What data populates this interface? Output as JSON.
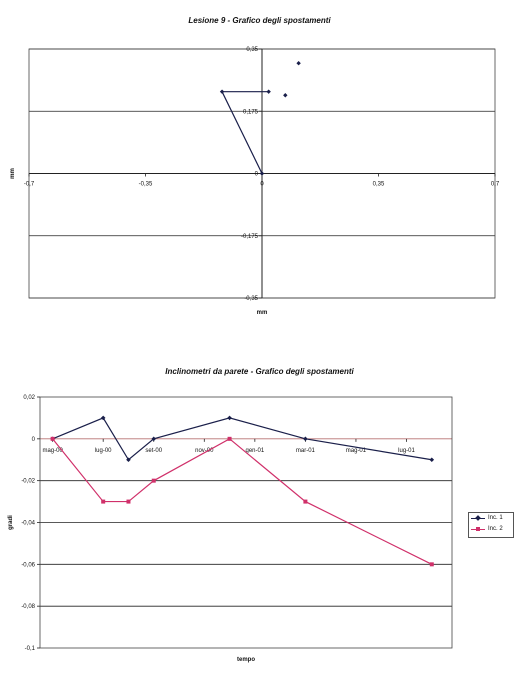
{
  "chart_data": [
    {
      "type": "scatter",
      "title": "Lesione 9 - Grafico degli spostamenti",
      "xlabel": "mm",
      "ylabel": "mm",
      "xlim": [
        -0.7,
        0.7
      ],
      "ylim": [
        -0.35,
        0.35
      ],
      "x_ticks": [
        "-0,7",
        "-0,35",
        "0",
        "0,35",
        "0,7"
      ],
      "x_tick_values": [
        -0.7,
        -0.35,
        0,
        0.35,
        0.7
      ],
      "y_ticks": [
        "0,35",
        "0,175",
        "0",
        "-0,175",
        "-0,35"
      ],
      "y_tick_values": [
        0.35,
        0.175,
        0,
        -0.175,
        -0.35
      ],
      "grid": "horizontal",
      "series": [
        {
          "color": "#1a1f4a",
          "connected": true,
          "points": [
            [
              0,
              0
            ],
            [
              -0.12,
              0.23
            ],
            [
              0.02,
              0.23
            ]
          ]
        },
        {
          "color": "#1a1f4a",
          "connected": false,
          "points": [
            [
              0.07,
              0.22
            ],
            [
              0.11,
              0.31
            ]
          ]
        }
      ]
    },
    {
      "type": "line",
      "title": "Inclinometri da parete - Grafico degli spostamenti",
      "xlabel": "tempo",
      "ylabel": "gradi",
      "ylim": [
        -0.1,
        0.02
      ],
      "y_ticks": [
        "0,02",
        "0",
        "-0,02",
        "-0,04",
        "-0,06",
        "-0,08",
        "-0,1"
      ],
      "y_tick_values": [
        0.02,
        0,
        -0.02,
        -0.04,
        -0.06,
        -0.08,
        -0.1
      ],
      "x_ticks": [
        "mag-00",
        "lug-00",
        "set-00",
        "nov-00",
        "gen-01",
        "mar-01",
        "mag-01",
        "lug-01"
      ],
      "x_tick_months": [
        0,
        2,
        4,
        6,
        8,
        10,
        12,
        14
      ],
      "x_range_months": [
        -0.5,
        15.8
      ],
      "grid": "horizontal",
      "legend_position": "right",
      "series": [
        {
          "name": "Inc. 1",
          "color": "#1a1f4a",
          "marker": "diamond",
          "months": [
            0,
            2,
            3,
            4,
            7,
            10,
            15
          ],
          "values": [
            0,
            0.01,
            -0.01,
            0,
            0.01,
            0,
            -0.01
          ]
        },
        {
          "name": "Inc. 2",
          "color": "#d0306a",
          "marker": "square",
          "months": [
            0,
            2,
            3,
            4,
            7,
            10,
            15
          ],
          "values": [
            0,
            -0.03,
            -0.03,
            -0.02,
            0,
            -0.03,
            -0.06
          ]
        }
      ]
    }
  ]
}
